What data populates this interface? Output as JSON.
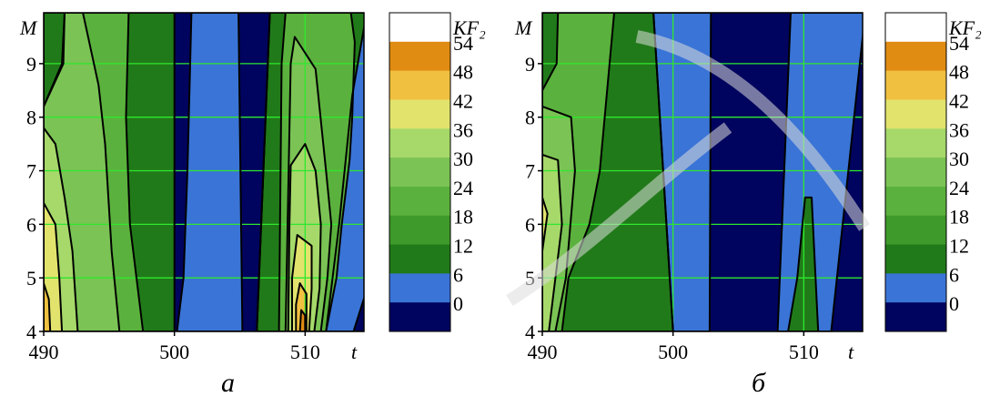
{
  "colors": {
    "levels": [
      "#00045e",
      "#3a74d6",
      "#217a19",
      "#3e9a2a",
      "#5bb13d",
      "#7bc355",
      "#a6d96a",
      "#e2e36d",
      "#f0c040",
      "#e08c13",
      "#ffffff"
    ],
    "grid": "#2ee82e"
  },
  "colorbar": {
    "title": "KF₂",
    "labels": [
      "54",
      "48",
      "42",
      "36",
      "30",
      "24",
      "18",
      "12",
      "6",
      "0"
    ]
  },
  "chart_data": [
    {
      "type": "heatmap",
      "caption": "а",
      "xlabel": "t",
      "ylabel": "M",
      "xlim": [
        490,
        514.5
      ],
      "ylim": [
        4,
        9.95
      ],
      "xticks": [
        "490",
        "500",
        "510"
      ],
      "yticks": [
        "4",
        "5",
        "6",
        "7",
        "8",
        "9"
      ],
      "grid": true,
      "levels": [
        0,
        6,
        12,
        18,
        24,
        30,
        36,
        42,
        48,
        54
      ],
      "regions": [
        {
          "level": 12,
          "points": [
            [
              490,
              4
            ],
            [
              500,
              4
            ],
            [
              500,
              9.95
            ],
            [
              490,
              9.95
            ]
          ]
        },
        {
          "level": 24,
          "points": [
            [
              490,
              4
            ],
            [
              497.6,
              4
            ],
            [
              496.6,
              6
            ],
            [
              496.3,
              8
            ],
            [
              496.5,
              9.95
            ],
            [
              491.6,
              9.95
            ],
            [
              491.5,
              9
            ],
            [
              490,
              8.2
            ]
          ]
        },
        {
          "level": 30,
          "points": [
            [
              490,
              4
            ],
            [
              495.8,
              4
            ],
            [
              495.2,
              5.5
            ],
            [
              494.7,
              7.5
            ],
            [
              494.2,
              8.6
            ],
            [
              493,
              9.95
            ],
            [
              491.6,
              9.95
            ],
            [
              491.4,
              9
            ],
            [
              490,
              8.2
            ]
          ]
        },
        {
          "level": 36,
          "points": [
            [
              490,
              4
            ],
            [
              492.6,
              4
            ],
            [
              492.2,
              5.5
            ],
            [
              491.6,
              6.5
            ],
            [
              490.9,
              7.5
            ],
            [
              490,
              7.8
            ]
          ]
        },
        {
          "level": 42,
          "points": [
            [
              490,
              4
            ],
            [
              491.4,
              4
            ],
            [
              491.2,
              5
            ],
            [
              490.9,
              6
            ],
            [
              490,
              6.4
            ]
          ]
        },
        {
          "level": 48,
          "points": [
            [
              490,
              4
            ],
            [
              490.5,
              4
            ],
            [
              490.4,
              4.6
            ],
            [
              490,
              4.9
            ]
          ]
        },
        {
          "level": 6,
          "points": [
            [
              500.2,
              4
            ],
            [
              505.2,
              4
            ],
            [
              504.9,
              9.95
            ],
            [
              501.3,
              9.95
            ],
            [
              501,
              7
            ],
            [
              500.7,
              5
            ]
          ]
        },
        {
          "level": 6,
          "points": [
            [
              507.3,
              9.95
            ],
            [
              516,
              9.95
            ],
            [
              516,
              4
            ],
            [
              506.3,
              4
            ]
          ]
        },
        {
          "level": 12,
          "points": [
            [
              507.3,
              9.95
            ],
            [
              514.7,
              9.95
            ],
            [
              513.6,
              8.4
            ],
            [
              513.1,
              7.2
            ],
            [
              512.6,
              6
            ],
            [
              512.1,
              5
            ],
            [
              511.6,
              4
            ],
            [
              506.3,
              4
            ]
          ]
        },
        {
          "level": 24,
          "points": [
            [
              508,
              4
            ],
            [
              511.6,
              4
            ],
            [
              512.4,
              5
            ],
            [
              512.8,
              6
            ],
            [
              513.4,
              7.2
            ],
            [
              513.6,
              8
            ],
            [
              513.8,
              9.4
            ],
            [
              513.5,
              9.95
            ],
            [
              508.5,
              9.95
            ],
            [
              508.2,
              9
            ]
          ]
        },
        {
          "level": 30,
          "points": [
            [
              508.5,
              4
            ],
            [
              511.2,
              4
            ],
            [
              511.7,
              5
            ],
            [
              512,
              6
            ],
            [
              511.6,
              7
            ],
            [
              510.8,
              8.9
            ],
            [
              509.2,
              9.5
            ],
            [
              508.9,
              9
            ]
          ]
        },
        {
          "level": 36,
          "points": [
            [
              508.7,
              4
            ],
            [
              510.7,
              4
            ],
            [
              511.1,
              4.8
            ],
            [
              511.2,
              6
            ],
            [
              510.8,
              7
            ],
            [
              510,
              7.5
            ],
            [
              508.9,
              7.1
            ],
            [
              508.8,
              6
            ]
          ]
        },
        {
          "level": 42,
          "points": [
            [
              509,
              4
            ],
            [
              510.3,
              4
            ],
            [
              510.5,
              4.8
            ],
            [
              510.5,
              5.6
            ],
            [
              509.4,
              5.8
            ],
            [
              509,
              5
            ]
          ]
        },
        {
          "level": 48,
          "points": [
            [
              509.3,
              4
            ],
            [
              510.1,
              4
            ],
            [
              510.1,
              4.7
            ],
            [
              509.6,
              4.9
            ],
            [
              509.3,
              4.5
            ]
          ]
        },
        {
          "level": 54,
          "points": [
            [
              509.6,
              4
            ],
            [
              510,
              4
            ],
            [
              510,
              4.3
            ],
            [
              509.7,
              4.4
            ]
          ]
        },
        {
          "level": 0,
          "points": [
            [
              513.7,
              4
            ],
            [
              515,
              4
            ],
            [
              515,
              5
            ]
          ]
        }
      ]
    },
    {
      "type": "heatmap",
      "caption": "б",
      "xlabel": "t",
      "ylabel": "M",
      "xlim": [
        490,
        514.5
      ],
      "ylim": [
        4,
        9.95
      ],
      "xticks": [
        "490",
        "500",
        "510"
      ],
      "yticks": [
        "4",
        "5",
        "6",
        "7",
        "8",
        "9"
      ],
      "grid": true,
      "levels": [
        0,
        6,
        12,
        18,
        24,
        30,
        36,
        42,
        48,
        54
      ],
      "regions": [
        {
          "level": 12,
          "points": [
            [
              490,
              4
            ],
            [
              500,
              4
            ],
            [
              498.5,
              9.95
            ],
            [
              490,
              9.95
            ]
          ]
        },
        {
          "level": 6,
          "points": [
            [
              500,
              4
            ],
            [
              502.8,
              4
            ],
            [
              502.9,
              9.95
            ],
            [
              498.5,
              9.95
            ]
          ]
        },
        {
          "level": 24,
          "points": [
            [
              490,
              4
            ],
            [
              491.5,
              4
            ],
            [
              492,
              5
            ],
            [
              493.6,
              6
            ],
            [
              494.4,
              7
            ],
            [
              495.5,
              9.95
            ],
            [
              491.2,
              9.95
            ],
            [
              491.1,
              9
            ],
            [
              490,
              8.5
            ]
          ]
        },
        {
          "level": 30,
          "points": [
            [
              490,
              4
            ],
            [
              491,
              4
            ],
            [
              491.8,
              5
            ],
            [
              492.5,
              7
            ],
            [
              492.2,
              8
            ],
            [
              490,
              8.2
            ]
          ]
        },
        {
          "level": 36,
          "points": [
            [
              490,
              4
            ],
            [
              490.5,
              4
            ],
            [
              491,
              5
            ],
            [
              491.5,
              6
            ],
            [
              491.2,
              7.2
            ],
            [
              490,
              7.3
            ]
          ]
        },
        {
          "level": 42,
          "points": [
            [
              490,
              5.5
            ],
            [
              490.4,
              6.2
            ],
            [
              490,
              6.5
            ]
          ]
        },
        {
          "level": 6,
          "points": [
            [
              508,
              4
            ],
            [
              512.1,
              4
            ],
            [
              514.7,
              9.95
            ],
            [
              509,
              9.95
            ]
          ]
        },
        {
          "level": 12,
          "points": [
            [
              508.8,
              4
            ],
            [
              511.1,
              4
            ],
            [
              510.9,
              5
            ],
            [
              510.6,
              6.5
            ],
            [
              510.1,
              6.5
            ],
            [
              509.5,
              5
            ]
          ]
        }
      ]
    }
  ]
}
